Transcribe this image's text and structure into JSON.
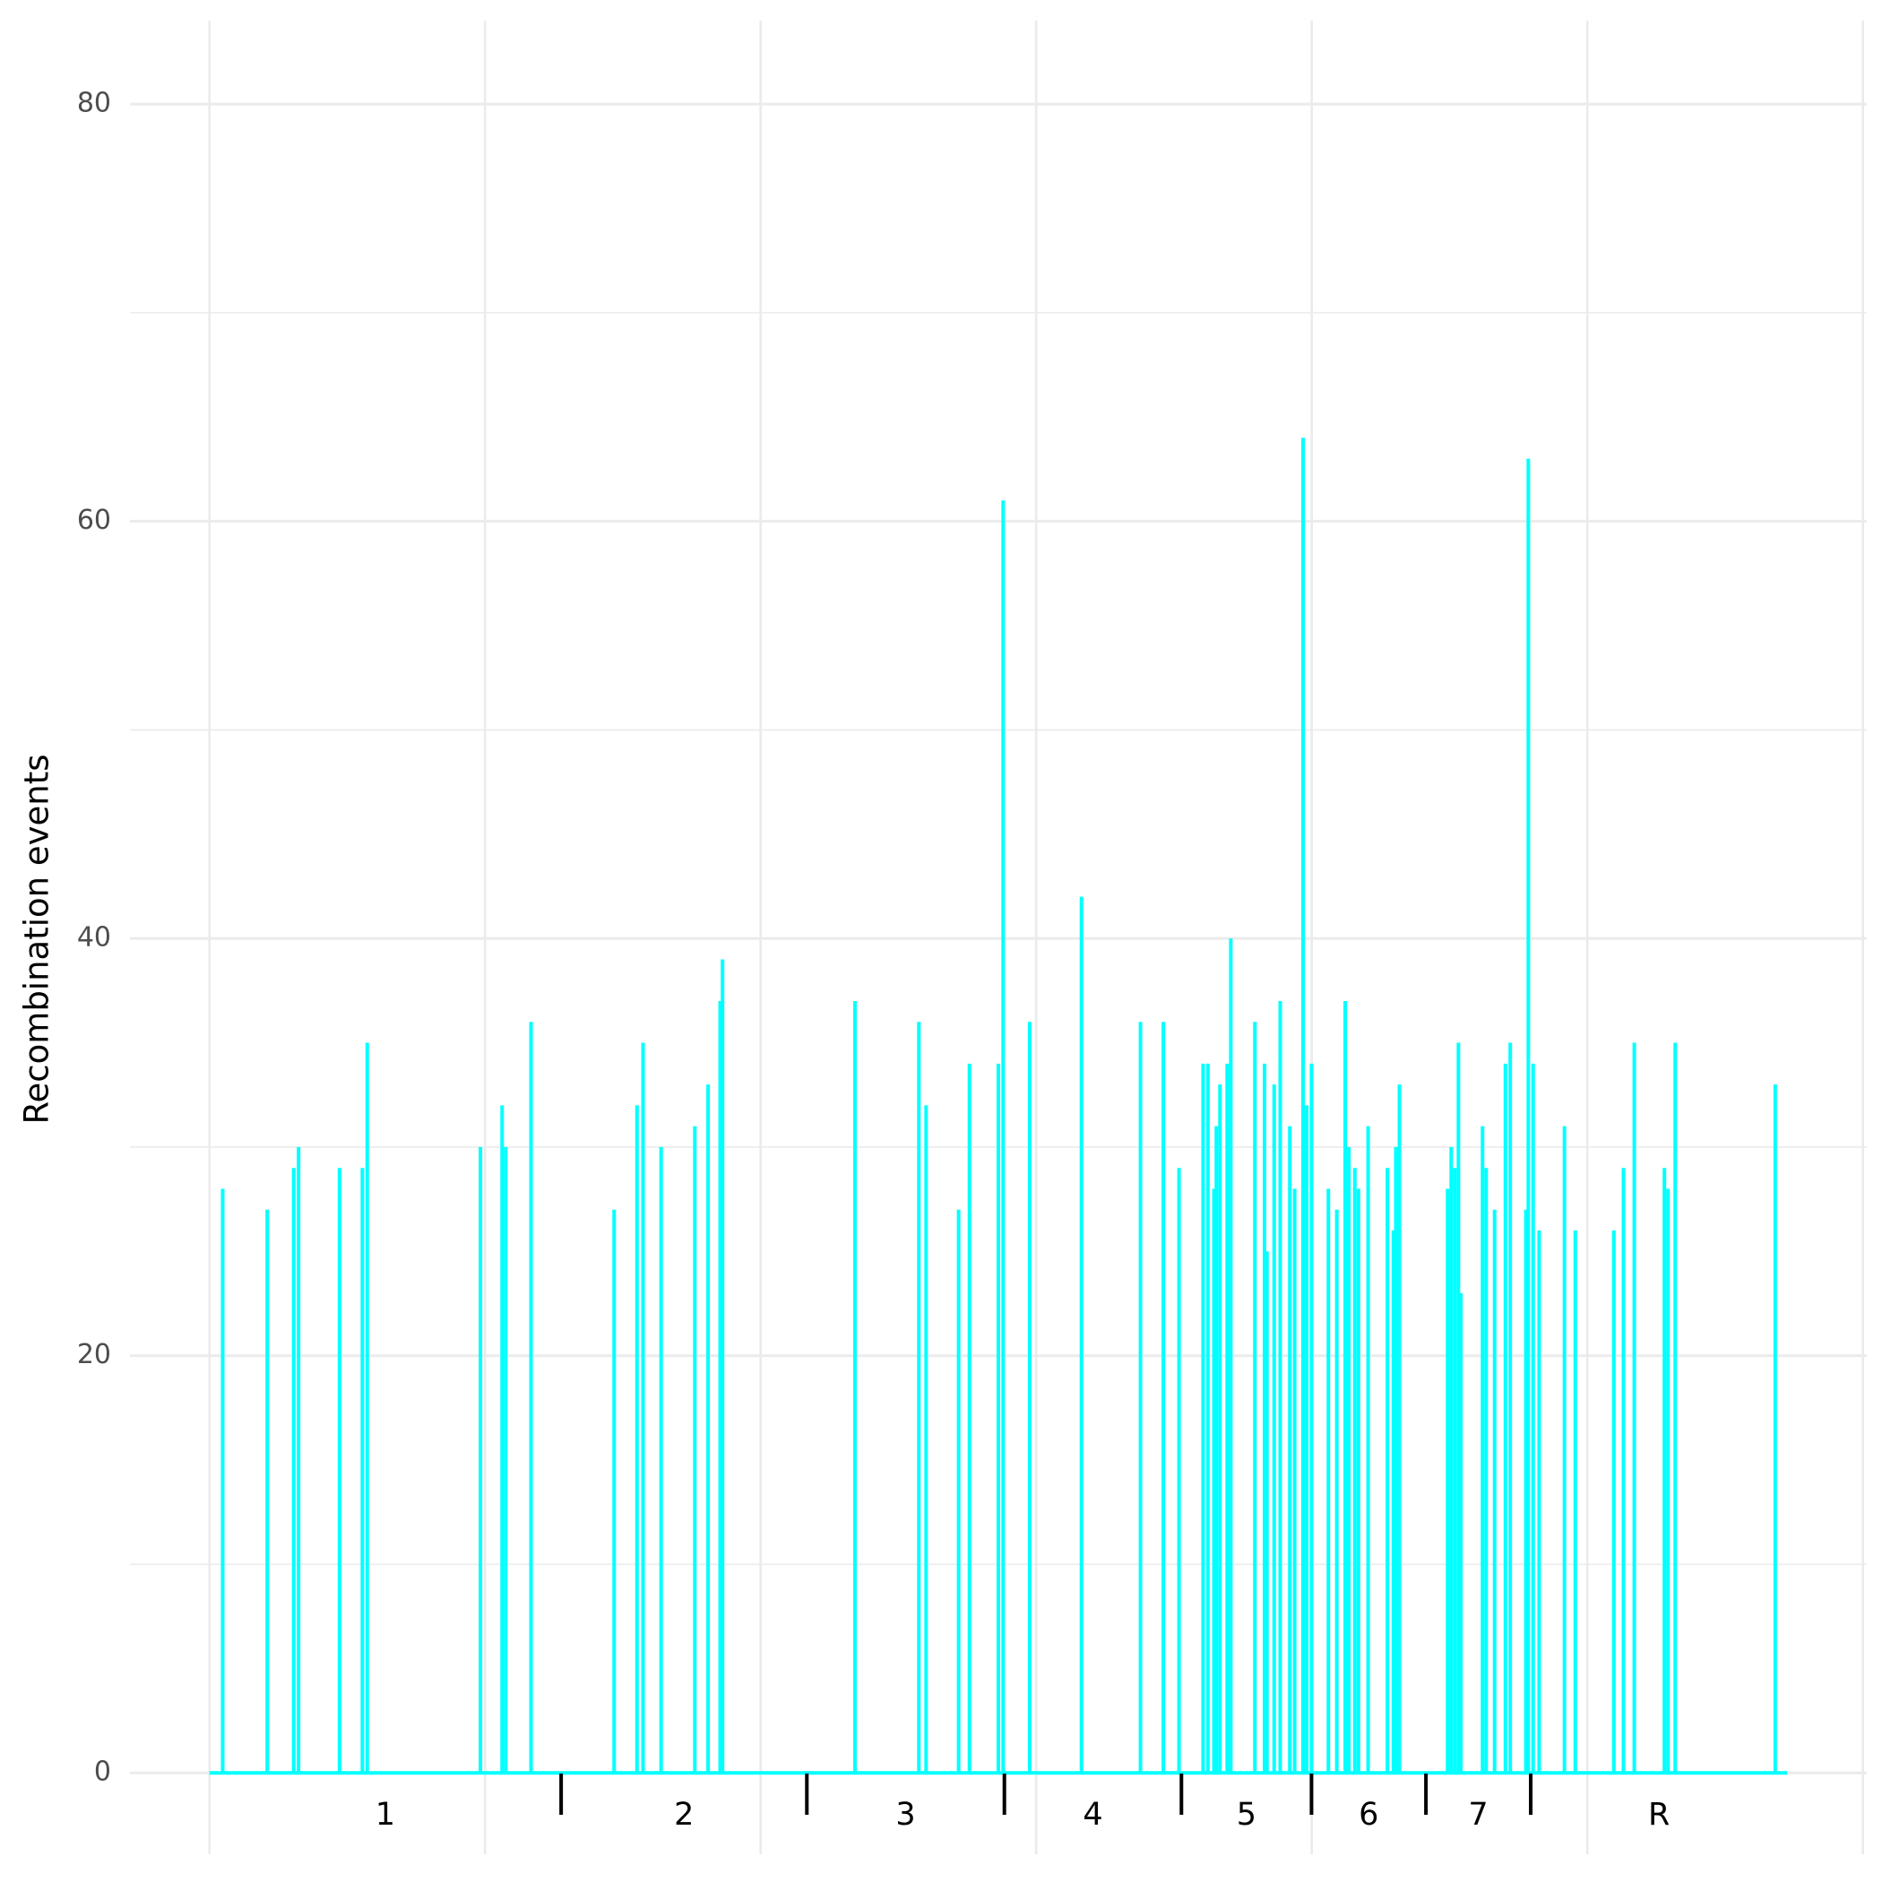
{
  "chart_data": {
    "type": "spike",
    "ylabel": "Recombination events",
    "color": "#00ffff",
    "xlim": [
      -66,
      1376
    ],
    "ylim": [
      -3.9,
      84
    ],
    "yticks": [
      0,
      20,
      40,
      60,
      80
    ],
    "yminor": [
      10,
      30,
      50,
      70
    ],
    "xgrid": [
      0,
      228.8,
      457.6,
      686.4,
      915.2,
      1144,
      1372.8
    ],
    "grid": true,
    "regions": [
      "1",
      "2",
      "3",
      "4",
      "5",
      "6",
      "7",
      "R"
    ],
    "boundaries": [
      0,
      292,
      496,
      660,
      807,
      915,
      1010,
      1097,
      1310
    ],
    "x": [
      11,
      48,
      70,
      74,
      108,
      127,
      131,
      225,
      243,
      246,
      267,
      336,
      355,
      360,
      375,
      403,
      414,
      424,
      426,
      536,
      589,
      595,
      622,
      631,
      655,
      659,
      681,
      724,
      773,
      792,
      805,
      825,
      829,
      834,
      836,
      839,
      845,
      848,
      868,
      876,
      878,
      884,
      889,
      897,
      901,
      908,
      911,
      915,
      929,
      936,
      943,
      946,
      951,
      954,
      962,
      978,
      983,
      985,
      988,
      1028,
      1031,
      1034,
      1037,
      1039,
      1057,
      1060,
      1067,
      1076,
      1080,
      1093,
      1095,
      1099,
      1104,
      1125,
      1134,
      1166,
      1174,
      1183,
      1208,
      1211,
      1217,
      1300
    ],
    "values": [
      28,
      27,
      29,
      30,
      29,
      29,
      35,
      30,
      32,
      30,
      36,
      27,
      32,
      35,
      30,
      31,
      33,
      37,
      39,
      37,
      36,
      32,
      27,
      34,
      34,
      61,
      36,
      42,
      36,
      36,
      29,
      34,
      34,
      28,
      31,
      33,
      34,
      40,
      36,
      34,
      25,
      33,
      37,
      31,
      28,
      64,
      32,
      34,
      28,
      27,
      37,
      30,
      29,
      28,
      31,
      29,
      26,
      30,
      33,
      28,
      30,
      29,
      35,
      23,
      31,
      29,
      27,
      34,
      35,
      27,
      63,
      34,
      26,
      31,
      26,
      26,
      29,
      35,
      29,
      28,
      35,
      33
    ]
  }
}
